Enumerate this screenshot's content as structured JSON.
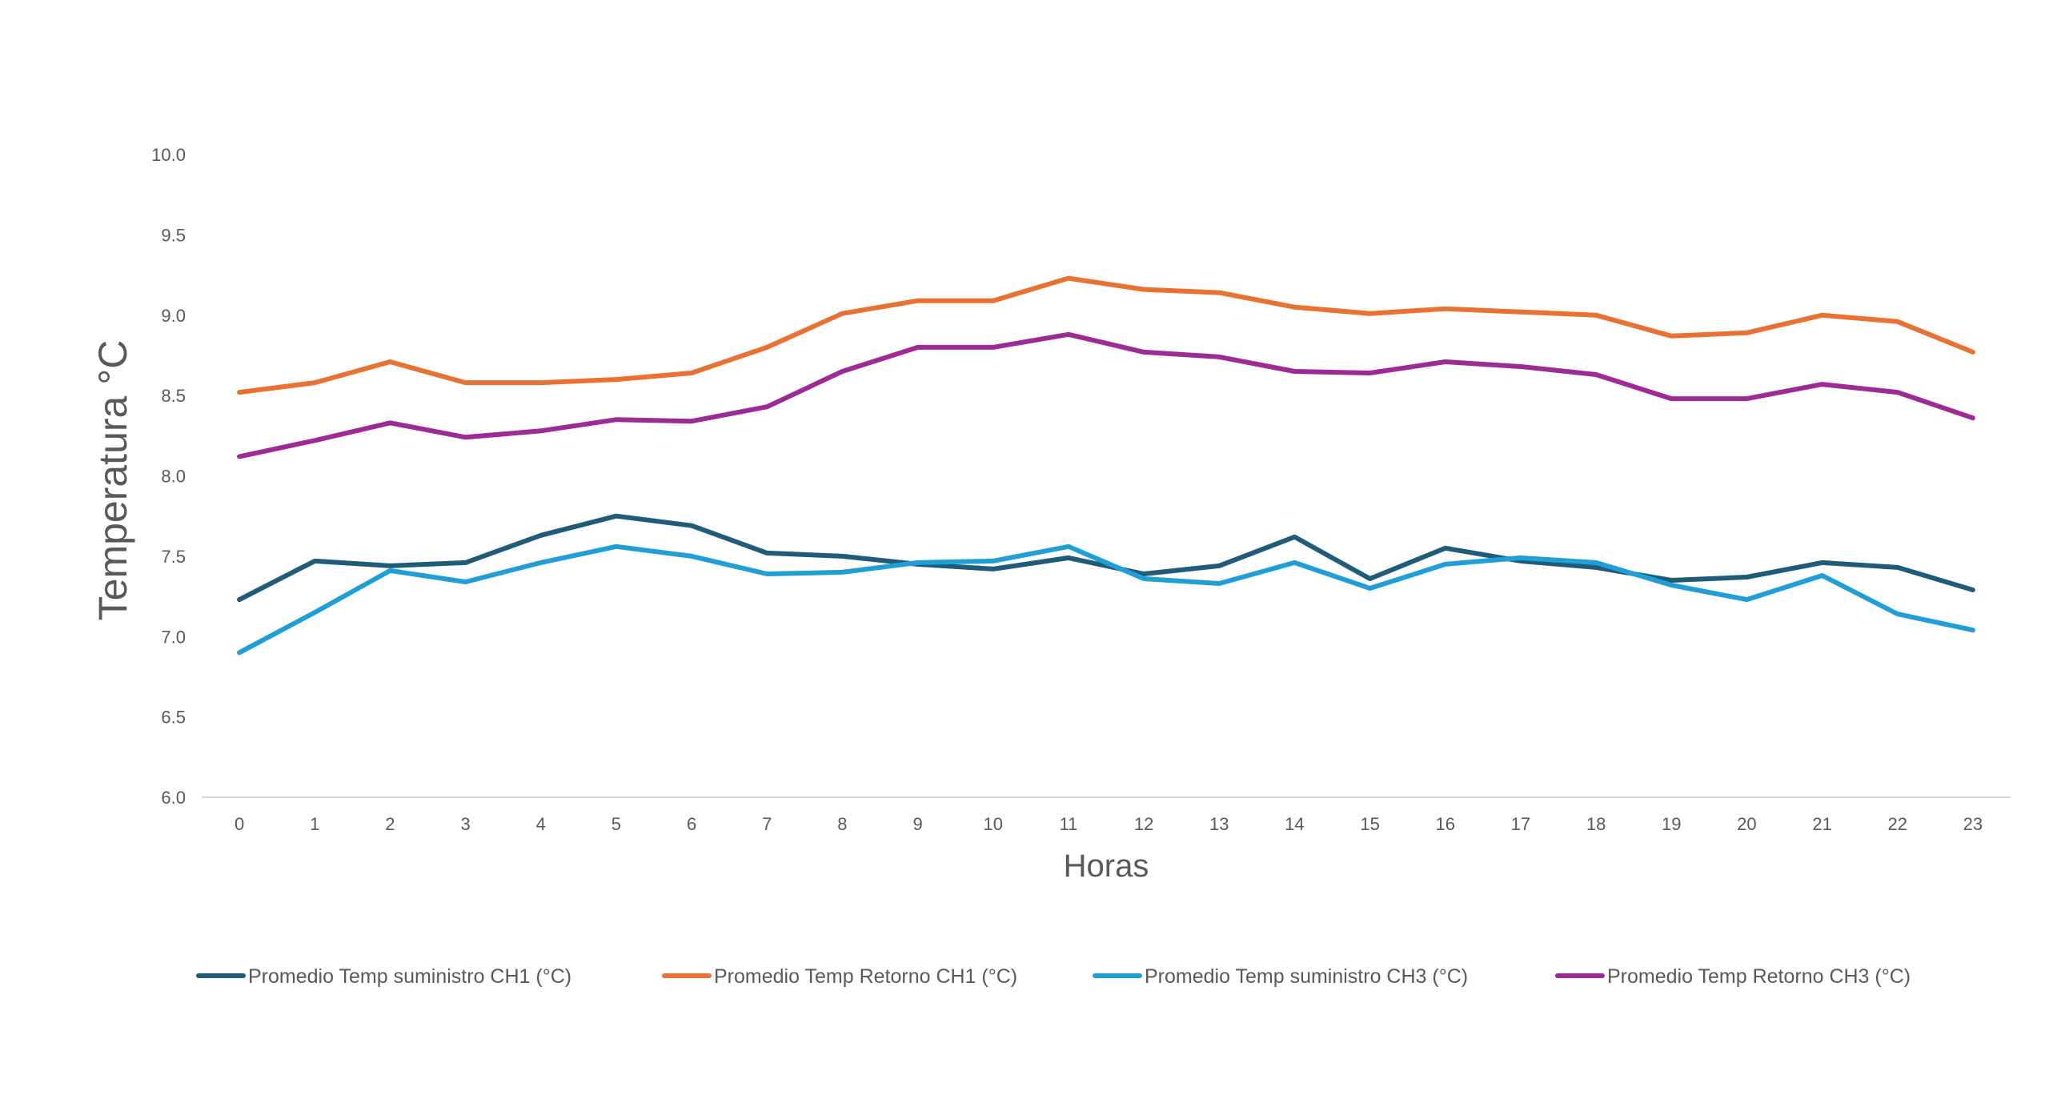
{
  "chart_data": {
    "type": "line",
    "title": "",
    "xlabel": "Horas",
    "ylabel": "Temperatura °C",
    "x": [
      "0",
      "1",
      "2",
      "3",
      "4",
      "5",
      "6",
      "7",
      "8",
      "9",
      "10",
      "11",
      "12",
      "13",
      "14",
      "15",
      "16",
      "17",
      "18",
      "19",
      "20",
      "21",
      "22",
      "23"
    ],
    "ylim": [
      6.0,
      10.0
    ],
    "yticks": [
      "6.0",
      "6.5",
      "7.0",
      "7.5",
      "8.0",
      "8.5",
      "9.0",
      "9.5",
      "10.0"
    ],
    "grid": false,
    "legend_position": "bottom",
    "series": [
      {
        "name": "Promedio  Temp suministro CH1   (°C)",
        "color": "#1f5c7a",
        "values": [
          7.23,
          7.47,
          7.44,
          7.46,
          7.63,
          7.75,
          7.69,
          7.52,
          7.5,
          7.45,
          7.42,
          7.49,
          7.39,
          7.44,
          7.62,
          7.36,
          7.55,
          7.47,
          7.43,
          7.35,
          7.37,
          7.46,
          7.43,
          7.29
        ]
      },
      {
        "name": "Promedio  Temp Retorno CH1  (°C)",
        "color": "#e97132",
        "values": [
          8.52,
          8.58,
          8.71,
          8.58,
          8.58,
          8.6,
          8.64,
          8.8,
          9.01,
          9.09,
          9.09,
          9.23,
          9.16,
          9.14,
          9.05,
          9.01,
          9.04,
          9.02,
          9.0,
          8.87,
          8.89,
          9.0,
          8.96,
          8.77
        ]
      },
      {
        "name": "Promedio Temp suministro  CH3  (°C)",
        "color": "#1f9fd6",
        "values": [
          6.9,
          7.15,
          7.41,
          7.34,
          7.46,
          7.56,
          7.5,
          7.39,
          7.4,
          7.46,
          7.47,
          7.56,
          7.36,
          7.33,
          7.46,
          7.3,
          7.45,
          7.49,
          7.46,
          7.32,
          7.23,
          7.38,
          7.14,
          7.04
        ]
      },
      {
        "name": "Promedio  Temp Retorno CH3 (°C)",
        "color": "#9e2a96",
        "values": [
          8.12,
          8.22,
          8.33,
          8.24,
          8.28,
          8.35,
          8.34,
          8.43,
          8.65,
          8.8,
          8.8,
          8.88,
          8.77,
          8.74,
          8.65,
          8.64,
          8.71,
          8.68,
          8.63,
          8.48,
          8.48,
          8.57,
          8.52,
          8.36
        ]
      }
    ]
  }
}
